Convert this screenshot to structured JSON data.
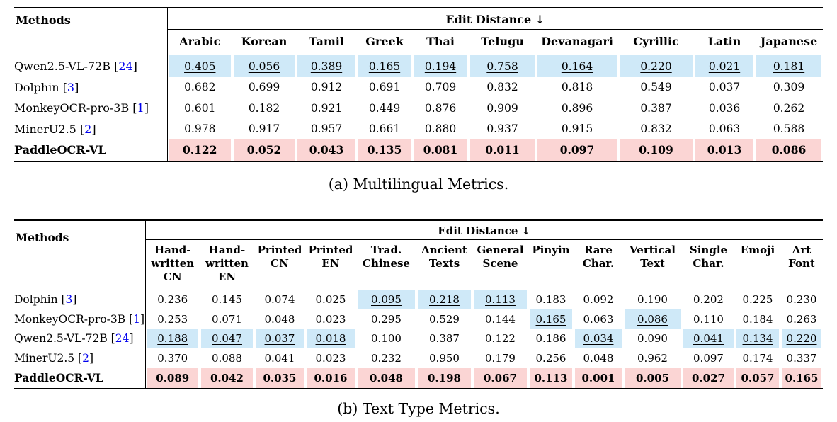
{
  "colors": {
    "highlight_blue": "#cfe9f8",
    "highlight_pink": "#fbd5d4",
    "citation_blue": "#0000ee",
    "rule_black": "#000000"
  },
  "tables": [
    {
      "caption": "(a) Multilingual Metrics.",
      "methods_header": "Methods",
      "group_header": "Edit Distance ↓",
      "columns": [
        "Arabic",
        "Korean",
        "Tamil",
        "Greek",
        "Thai",
        "Telugu",
        "Devanagari",
        "Cyrillic",
        "Latin",
        "Japanese"
      ],
      "rows": [
        {
          "method": "Qwen2.5-VL-72B",
          "citation": "24",
          "bold": false,
          "highlight": "blue",
          "values": [
            "0.405",
            "0.056",
            "0.389",
            "0.165",
            "0.194",
            "0.758",
            "0.164",
            "0.220",
            "0.021",
            "0.181"
          ],
          "underline_cells": [
            0,
            1,
            2,
            3,
            4,
            5,
            6,
            7,
            8,
            9
          ],
          "highlight_cells": []
        },
        {
          "method": "Dolphin",
          "citation": "3",
          "bold": false,
          "highlight": null,
          "values": [
            "0.682",
            "0.699",
            "0.912",
            "0.691",
            "0.709",
            "0.832",
            "0.818",
            "0.549",
            "0.037",
            "0.309"
          ],
          "underline_cells": [],
          "highlight_cells": []
        },
        {
          "method": "MonkeyOCR-pro-3B",
          "citation": "1",
          "bold": false,
          "highlight": null,
          "values": [
            "0.601",
            "0.182",
            "0.921",
            "0.449",
            "0.876",
            "0.909",
            "0.896",
            "0.387",
            "0.036",
            "0.262"
          ],
          "underline_cells": [],
          "highlight_cells": []
        },
        {
          "method": "MinerU2.5",
          "citation": "2",
          "bold": false,
          "highlight": null,
          "values": [
            "0.978",
            "0.917",
            "0.957",
            "0.661",
            "0.880",
            "0.937",
            "0.915",
            "0.832",
            "0.063",
            "0.588"
          ],
          "underline_cells": [],
          "highlight_cells": []
        },
        {
          "method": "PaddleOCR-VL",
          "citation": null,
          "bold": true,
          "highlight": "pink",
          "values": [
            "0.122",
            "0.052",
            "0.043",
            "0.135",
            "0.081",
            "0.011",
            "0.097",
            "0.109",
            "0.013",
            "0.086"
          ],
          "underline_cells": [],
          "highlight_cells": []
        }
      ]
    },
    {
      "caption": "(b) Text Type Metrics.",
      "methods_header": "Methods",
      "group_header": "Edit Distance ↓",
      "columns": [
        "Hand-\nwritten\nCN",
        "Hand-\nwritten\nEN",
        "Printed\nCN",
        "Printed\nEN",
        "Trad.\nChinese",
        "Ancient\nTexts",
        "General\nScene",
        "Pinyin",
        "Rare\nChar.",
        "Vertical\nText",
        "Single\nChar.",
        "Emoji",
        "Art\nFont"
      ],
      "rows": [
        {
          "method": "Dolphin",
          "citation": "3",
          "bold": false,
          "highlight": null,
          "values": [
            "0.236",
            "0.145",
            "0.074",
            "0.025",
            "0.095",
            "0.218",
            "0.113",
            "0.183",
            "0.092",
            "0.190",
            "0.202",
            "0.225",
            "0.230"
          ],
          "underline_cells": [
            4,
            5,
            6
          ],
          "highlight_cells": [
            4,
            5,
            6
          ]
        },
        {
          "method": "MonkeyOCR-pro-3B",
          "citation": "1",
          "bold": false,
          "highlight": null,
          "values": [
            "0.253",
            "0.071",
            "0.048",
            "0.023",
            "0.295",
            "0.529",
            "0.144",
            "0.165",
            "0.063",
            "0.086",
            "0.110",
            "0.184",
            "0.263"
          ],
          "underline_cells": [
            7,
            9
          ],
          "highlight_cells": [
            7,
            9
          ]
        },
        {
          "method": "Qwen2.5-VL-72B",
          "citation": "24",
          "bold": false,
          "highlight": null,
          "values": [
            "0.188",
            "0.047",
            "0.037",
            "0.018",
            "0.100",
            "0.387",
            "0.122",
            "0.186",
            "0.034",
            "0.090",
            "0.041",
            "0.134",
            "0.220"
          ],
          "underline_cells": [
            0,
            1,
            2,
            3,
            8,
            10,
            11,
            12
          ],
          "highlight_cells": [
            0,
            1,
            2,
            3,
            8,
            10,
            11,
            12
          ]
        },
        {
          "method": "MinerU2.5",
          "citation": "2",
          "bold": false,
          "highlight": null,
          "values": [
            "0.370",
            "0.088",
            "0.041",
            "0.023",
            "0.232",
            "0.950",
            "0.179",
            "0.256",
            "0.048",
            "0.962",
            "0.097",
            "0.174",
            "0.337"
          ],
          "underline_cells": [],
          "highlight_cells": []
        },
        {
          "method": "PaddleOCR-VL",
          "citation": null,
          "bold": true,
          "highlight": "pink",
          "values": [
            "0.089",
            "0.042",
            "0.035",
            "0.016",
            "0.048",
            "0.198",
            "0.067",
            "0.113",
            "0.001",
            "0.005",
            "0.027",
            "0.057",
            "0.165"
          ],
          "underline_cells": [],
          "highlight_cells": []
        }
      ]
    }
  ]
}
